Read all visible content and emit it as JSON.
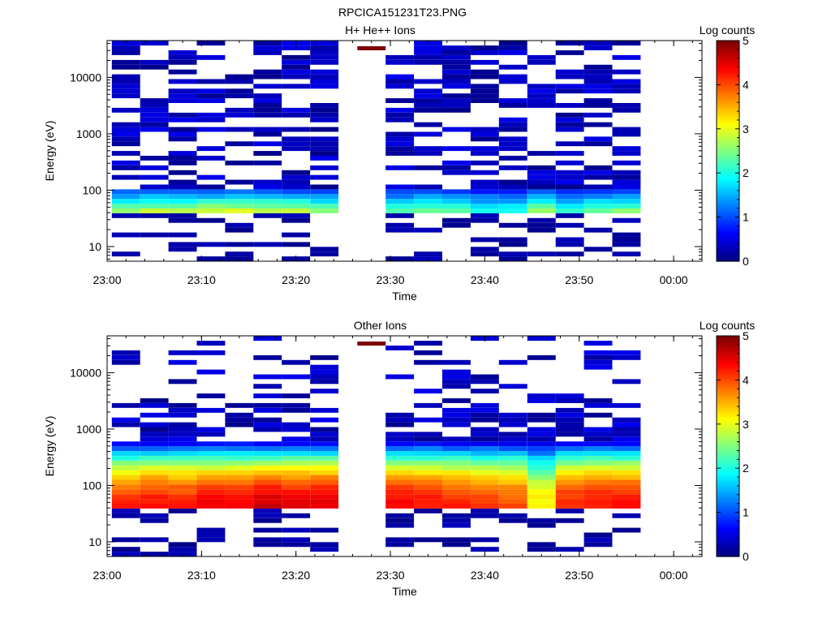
{
  "page": {
    "filename": "RPCICA151231T23.PNG"
  },
  "chart_data": [
    {
      "type": "heatmap",
      "title": "H+ He++ Ions",
      "xlabel": "Time",
      "ylabel": "Energy (eV)",
      "x_ticks": [
        "23:00",
        "23:10",
        "23:20",
        "23:30",
        "23:40",
        "23:50",
        "00:00"
      ],
      "x_range": [
        "23:00",
        "00:03"
      ],
      "y_ticks": [
        "10",
        "100",
        "1000",
        "10000"
      ],
      "y_scale": "log",
      "y_range": [
        5.5,
        45000
      ],
      "colorbar": {
        "label": "Log counts",
        "ticks": [
          "0",
          "1",
          "2",
          "3",
          "4",
          "5"
        ],
        "range": [
          0,
          5
        ],
        "colormap": "jet"
      },
      "time_bins": [
        "23:02",
        "23:05",
        "23:08",
        "23:11",
        "23:14",
        "23:17",
        "23:20",
        "23:23",
        "23:28",
        "23:31",
        "23:34",
        "23:37",
        "23:40",
        "23:43",
        "23:46",
        "23:49",
        "23:52",
        "23:55"
      ],
      "high_energy_marker": {
        "time": "23:28",
        "value": 5
      },
      "profile_peak_log_counts": [
        2.6,
        2.7,
        2.6,
        2.8,
        2.9,
        2.8,
        2.7,
        2.5,
        0,
        2.2,
        2.4,
        2.3,
        2.0,
        1.9,
        2.6,
        2.0,
        2.3,
        2.4
      ]
    },
    {
      "type": "heatmap",
      "title": "Other Ions",
      "xlabel": "Time",
      "ylabel": "Energy (eV)",
      "x_ticks": [
        "23:00",
        "23:10",
        "23:20",
        "23:30",
        "23:40",
        "23:50",
        "00:00"
      ],
      "x_range": [
        "23:00",
        "00:03"
      ],
      "y_ticks": [
        "10",
        "100",
        "1000",
        "10000"
      ],
      "y_scale": "log",
      "y_range": [
        5.5,
        45000
      ],
      "colorbar": {
        "label": "Log counts",
        "ticks": [
          "0",
          "1",
          "2",
          "3",
          "4",
          "5"
        ],
        "range": [
          0,
          5
        ],
        "colormap": "jet"
      },
      "time_bins": [
        "23:02",
        "23:05",
        "23:08",
        "23:11",
        "23:14",
        "23:17",
        "23:20",
        "23:23",
        "23:28",
        "23:31",
        "23:34",
        "23:37",
        "23:40",
        "23:43",
        "23:46",
        "23:49",
        "23:52",
        "23:55"
      ],
      "high_energy_marker": {
        "time": "23:28",
        "value": 5
      },
      "profile_peak_log_counts": [
        4.1,
        4.2,
        4.1,
        4.3,
        4.3,
        4.5,
        4.4,
        4.4,
        0,
        4.3,
        4.2,
        4.1,
        4.0,
        3.9,
        3.1,
        4.1,
        4.2,
        4.2
      ]
    }
  ]
}
